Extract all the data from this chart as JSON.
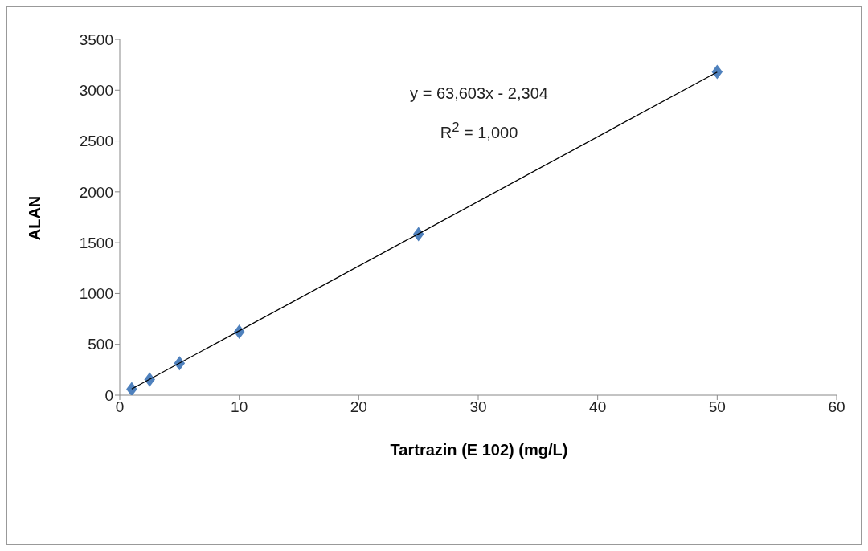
{
  "chart_data": {
    "type": "scatter",
    "xlabel": "Tartrazin (E 102) (mg/L)",
    "ylabel": "ALAN",
    "xlim": [
      0,
      60
    ],
    "xticks": [
      0,
      10,
      20,
      30,
      40,
      50,
      60
    ],
    "ylim": [
      0,
      3500
    ],
    "yticks": [
      0,
      500,
      1000,
      1500,
      2000,
      2500,
      3000,
      3500
    ],
    "grid": false,
    "series": [
      {
        "marker": "diamond",
        "color": "#4f81bd",
        "x": [
          1,
          2.5,
          5,
          10,
          25,
          50
        ],
        "values": [
          60,
          155,
          315,
          625,
          1585,
          3180
        ]
      },
      {
        "type": "line",
        "marker": "none",
        "color": "#000000",
        "x": [
          1,
          50
        ],
        "values": [
          61,
          3178
        ]
      }
    ],
    "annotations": [
      "y = 63,603x - 2,304",
      "R$^{2}$ = 1,000"
    ]
  }
}
